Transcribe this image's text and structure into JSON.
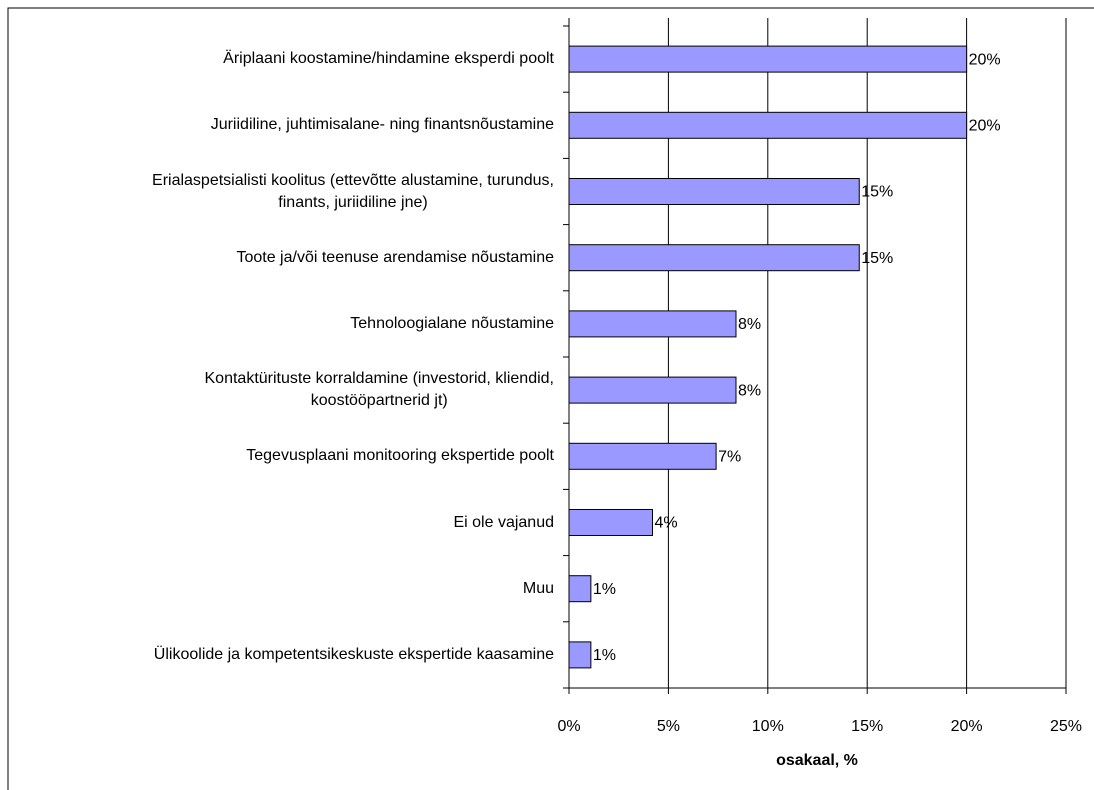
{
  "chart_data": {
    "type": "bar",
    "orientation": "horizontal",
    "categories": [
      "Äriplaani koostamine/hindamine eksperdi poolt",
      "Juriidiline, juhtimisalane- ning finantsnõustamine",
      "Erialaspetsialisti koolitus (ettevõtte alustamine, turundus,\nfinants, juriidiline jne)",
      "Toote ja/või teenuse arendamise nõustamine",
      "Tehnoloogialane nõustamine",
      "Kontaktürituste korraldamine (investorid, kliendid,\nkoostööpartnerid jt)",
      "Tegevusplaani monitooring ekspertide poolt",
      "Ei ole vajanud",
      "Muu",
      "Ülikoolide ja kompetentsikeskuste ekspertide kaasamine"
    ],
    "values": [
      20.0,
      20.0,
      14.6,
      14.6,
      8.4,
      8.4,
      7.4,
      4.2,
      1.1,
      1.1
    ],
    "value_labels": [
      "20%",
      "20%",
      "15%",
      "15%",
      "8%",
      "8%",
      "7%",
      "4%",
      "1%",
      "1%"
    ],
    "color": "#9999ff",
    "xlabel": "osakaal, %",
    "xlim": [
      0,
      25
    ],
    "xticks": [
      {
        "value": 0,
        "label": "0%"
      },
      {
        "value": 5,
        "label": "5%"
      },
      {
        "value": 10,
        "label": "10%"
      },
      {
        "value": 15,
        "label": "15%"
      },
      {
        "value": 20,
        "label": "20%"
      },
      {
        "value": 25,
        "label": "25%"
      }
    ],
    "grid": true
  }
}
